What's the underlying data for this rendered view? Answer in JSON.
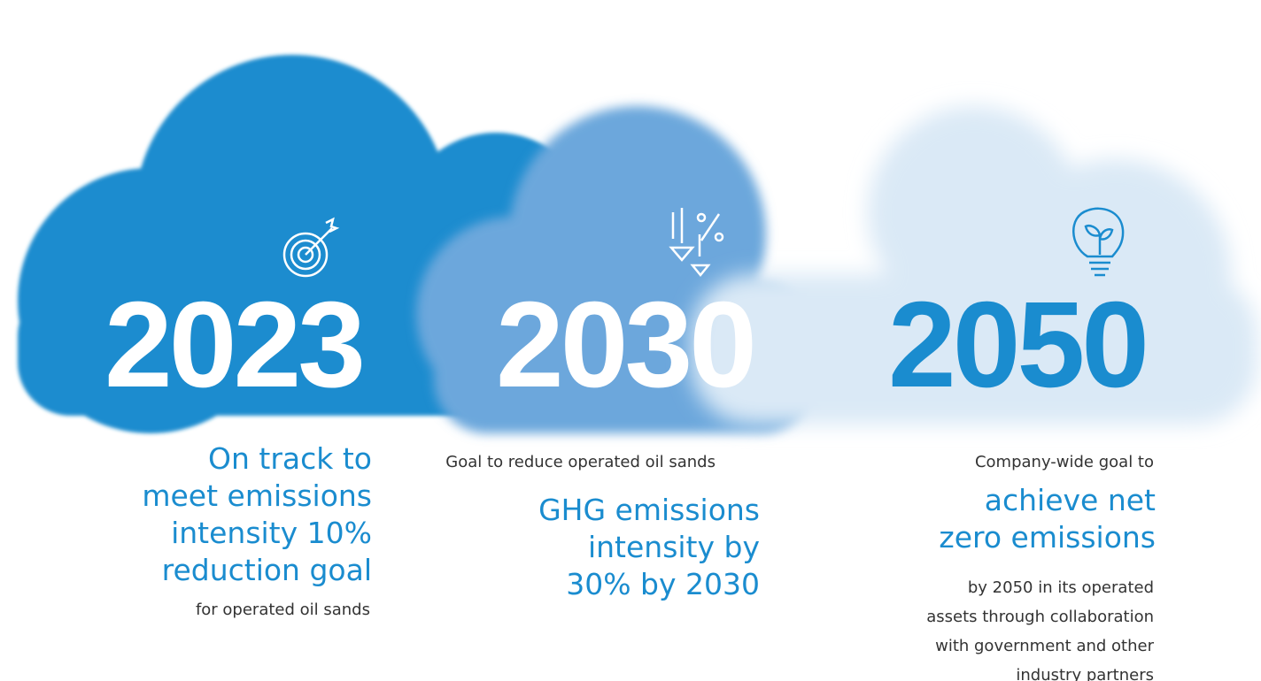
{
  "columns": [
    {
      "year": "2023",
      "headline": [
        "On track to",
        "meet emissions",
        "intensity 10%",
        "reduction goal"
      ],
      "detail": [
        "for operated oil sands"
      ]
    },
    {
      "year": "2030",
      "intro": "Goal to reduce operated oil sands",
      "headline": [
        "GHG emissions",
        "intensity by",
        "30% by 2030"
      ]
    },
    {
      "year": "2050",
      "intro": "Company-wide goal to",
      "headline": [
        "achieve net",
        "zero emissions"
      ],
      "detail": [
        "by 2050 in its operated",
        "assets through collaboration",
        "with government and other",
        "industry partners"
      ]
    }
  ]
}
